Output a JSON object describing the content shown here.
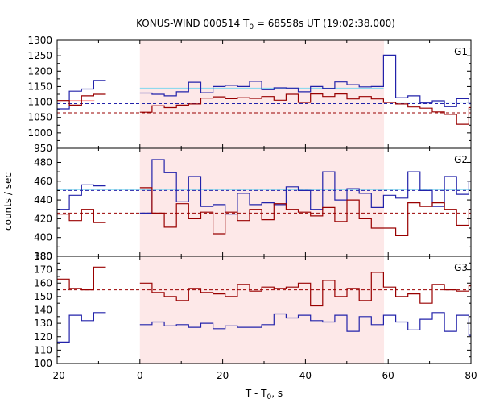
{
  "figure": {
    "title_main": "KONUS-WIND 000514 T",
    "title_sub": "0",
    "title_rest": " = 68558s UT (19:02:38.000)",
    "xlabel_main": "T - T",
    "xlabel_sub": "0",
    "xlabel_rest": ", s",
    "ylabel": "counts / sec"
  },
  "colors": {
    "blue": "#2222aa",
    "red": "#990000",
    "lightblue": "#7fd7ee",
    "pink": "#ff9999",
    "shade": "#fde8e8",
    "frame": "#000000"
  },
  "chart_data": {
    "type": "line",
    "x_range": [
      -20,
      80
    ],
    "x_ticks": [
      -20,
      0,
      20,
      40,
      60,
      80
    ],
    "x_tick_labels": [
      "-20",
      "0",
      "20",
      "40",
      "60",
      "80"
    ],
    "shaded_interval": [
      0,
      59
    ],
    "bin_width": 2.944,
    "panels": [
      {
        "name": "G1",
        "ylim": [
          950,
          1300
        ],
        "y_ticks": [
          950,
          1000,
          1050,
          1100,
          1150,
          1200,
          1250,
          1300
        ],
        "y_tick_labels": [
          "950",
          "1000",
          "1050",
          "1100",
          "1150",
          "1200",
          "1250",
          "1300"
        ],
        "background": {
          "blue": 1095,
          "red": 1065
        },
        "series": [
          {
            "color": "blue",
            "segments": [
              {
                "start": -20,
                "values": [
                  1078,
                  1135,
                  1142,
                  1170
                ]
              },
              {
                "start": 0,
                "values": [
                  1129,
                  1125,
                  1120,
                  1133,
                  1164,
                  1130,
                  1150,
                  1154,
                  1150,
                  1167,
                  1140,
                  1146,
                  1145,
                  1133,
                  1150,
                  1144,
                  1165,
                  1156,
                  1149,
                  1150,
                  1252,
                  1114,
                  1120,
                  1097,
                  1104,
                  1085,
                  1111,
                  1095,
                  1125,
                  1104,
                  1100
                ]
              }
            ]
          },
          {
            "color": "red",
            "segments": [
              {
                "start": -20,
                "values": [
                  1105,
                  1090,
                  1120,
                  1125
                ]
              },
              {
                "start": 0,
                "values": [
                  1067,
                  1088,
                  1082,
                  1090,
                  1094,
                  1113,
                  1117,
                  1111,
                  1114,
                  1112,
                  1118,
                  1106,
                  1125,
                  1099,
                  1126,
                  1118,
                  1126,
                  1110,
                  1118,
                  1110,
                  1099,
                  1094,
                  1084,
                  1080,
                  1068,
                  1060,
                  1028,
                  1082,
                  1063,
                  1074,
                  1063
                ]
              }
            ]
          }
        ],
        "fit_lines": [
          {
            "color": "lightblue",
            "value": 1145,
            "range": [
              0,
              58.9
            ]
          },
          {
            "color": "lightblue",
            "value": 1100,
            "range": [
              58.9,
              80
            ]
          },
          {
            "color": "pink",
            "value": 1105,
            "range": [
              -20,
              -11
            ]
          }
        ]
      },
      {
        "name": "G2",
        "ylim": [
          380,
          495
        ],
        "y_ticks": [
          380,
          400,
          420,
          440,
          460,
          480
        ],
        "y_tick_labels": [
          "380",
          "400",
          "420",
          "440",
          "460",
          "480"
        ],
        "background": {
          "blue": 450,
          "red": 426
        },
        "series": [
          {
            "color": "blue",
            "segments": [
              {
                "start": -20,
                "values": [
                  430,
                  445,
                  456,
                  455
                ]
              },
              {
                "start": 0,
                "values": [
                  426,
                  483,
                  469,
                  438,
                  465,
                  433,
                  435,
                  425,
                  447,
                  435,
                  437,
                  435,
                  454,
                  450,
                  430,
                  470,
                  440,
                  452,
                  447,
                  432,
                  445,
                  442,
                  470,
                  450,
                  433,
                  465,
                  446,
                  460,
                  440,
                  422,
                  425
                ]
              }
            ]
          },
          {
            "color": "red",
            "segments": [
              {
                "start": -20,
                "values": [
                  425,
                  418,
                  430,
                  416
                ]
              },
              {
                "start": 0,
                "values": [
                  453,
                  426,
                  411,
                  436,
                  420,
                  427,
                  404,
                  427,
                  418,
                  430,
                  419,
                  436,
                  430,
                  427,
                  423,
                  432,
                  417,
                  440,
                  420,
                  410,
                  410,
                  402,
                  437,
                  433,
                  437,
                  430,
                  413,
                  430,
                  428,
                  420,
                  406
                ]
              }
            ]
          }
        ],
        "fit_lines": [
          {
            "color": "lightblue",
            "value": 451,
            "range": [
              -20,
              80
            ]
          }
        ]
      },
      {
        "name": "G3",
        "ylim": [
          100,
          180
        ],
        "y_ticks": [
          100,
          110,
          120,
          130,
          140,
          150,
          160,
          170,
          180
        ],
        "y_tick_labels": [
          "100",
          "110",
          "120",
          "130",
          "140",
          "150",
          "160",
          "170",
          "180"
        ],
        "background": {
          "blue": 128,
          "red": 155
        },
        "series": [
          {
            "color": "blue",
            "segments": [
              {
                "start": -20,
                "values": [
                  116,
                  136,
                  132,
                  138
                ]
              },
              {
                "start": 0,
                "values": [
                  129,
                  131,
                  128,
                  129,
                  127,
                  130,
                  126,
                  128,
                  127,
                  127,
                  129,
                  137,
                  134,
                  136,
                  132,
                  131,
                  136,
                  124,
                  135,
                  129,
                  136,
                  131,
                  125,
                  133,
                  138,
                  124,
                  136,
                  121,
                  129,
                  135,
                  131
                ]
              }
            ]
          },
          {
            "color": "red",
            "segments": [
              {
                "start": -20,
                "values": [
                  163,
                  156,
                  155,
                  172
                ]
              },
              {
                "start": 0,
                "values": [
                  160,
                  153,
                  150,
                  147,
                  156,
                  153,
                  152,
                  150,
                  159,
                  154,
                  157,
                  156,
                  157,
                  160,
                  143,
                  162,
                  150,
                  156,
                  147,
                  168,
                  157,
                  150,
                  152,
                  145,
                  159,
                  155,
                  154,
                  158,
                  156,
                  158,
                  157
                ]
              }
            ]
          }
        ],
        "fit_lines": [
          {
            "color": "lightblue",
            "value": 128,
            "range": [
              -20,
              80
            ]
          }
        ]
      }
    ]
  }
}
